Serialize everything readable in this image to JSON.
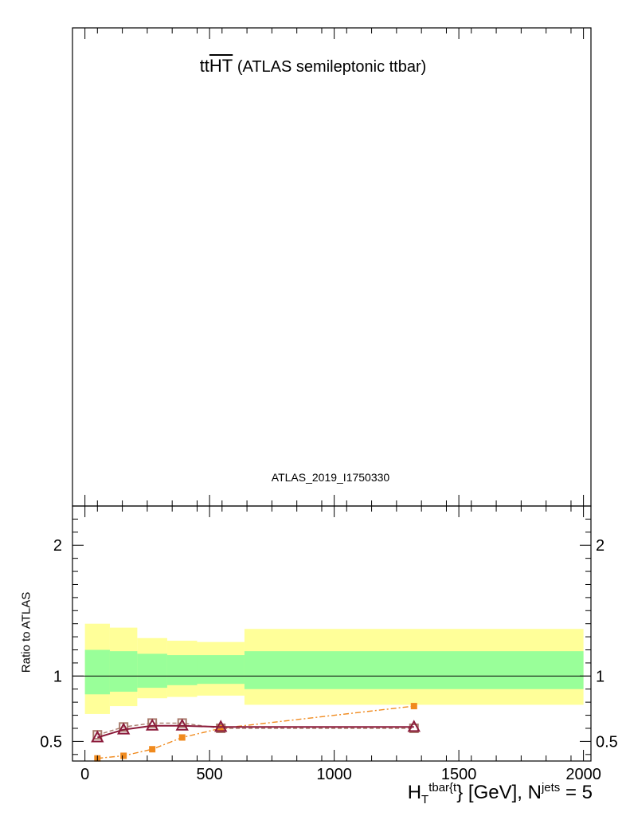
{
  "title": {
    "main": "tt",
    "main_bar": "HT",
    "sub": "(ATLAS semileptonic ttbar)"
  },
  "analysis_label": "ATLAS_2019_I1750330",
  "chart_data": {
    "type": "line",
    "ylabel": "Ratio to ATLAS",
    "xlabel": {
      "base": "H",
      "sub": "T",
      "sup": "tbar{t",
      "rest": "} [GeV], N",
      "jets_sup": "jets",
      "tail": " = 5"
    },
    "xlim": [
      -50,
      2030
    ],
    "ylim": [
      0.35,
      2.3
    ],
    "x_ticks": [
      0,
      500,
      1000,
      1500,
      2000
    ],
    "x_tick_labels": [
      "0",
      "500",
      "1000",
      "1500",
      "2000"
    ],
    "y_ticks": [
      0.5,
      1,
      2
    ],
    "y_tick_labels": [
      "0.5",
      "1",
      "2"
    ],
    "reference_line": 1,
    "bins": [
      [
        0,
        100
      ],
      [
        100,
        210
      ],
      [
        210,
        330
      ],
      [
        330,
        450
      ],
      [
        450,
        640
      ],
      [
        640,
        2000
      ]
    ],
    "uncertainty_bands": {
      "stat_green": [
        [
          0.86,
          1.2
        ],
        [
          0.88,
          1.19
        ],
        [
          0.91,
          1.17
        ],
        [
          0.93,
          1.16
        ],
        [
          0.94,
          1.16
        ],
        [
          0.9,
          1.19
        ]
      ],
      "total_yellow": [
        [
          0.71,
          1.4
        ],
        [
          0.77,
          1.37
        ],
        [
          0.83,
          1.29
        ],
        [
          0.84,
          1.27
        ],
        [
          0.85,
          1.26
        ],
        [
          0.78,
          1.36
        ]
      ]
    },
    "series": [
      {
        "color": "#f08a1e",
        "style": "dashdot",
        "marker": "square",
        "x": [
          50,
          155,
          270,
          390,
          545,
          1320
        ],
        "y": [
          0.37,
          0.39,
          0.44,
          0.53,
          0.6,
          0.77
        ]
      },
      {
        "color": "#a87a6c",
        "style": "dashed",
        "marker": "square-open",
        "x": [
          50,
          155,
          270,
          390,
          545,
          1320
        ],
        "y": [
          0.55,
          0.61,
          0.64,
          0.64,
          0.6,
          0.6
        ]
      },
      {
        "color": "#8b1a3a",
        "style": "solid",
        "marker": "triangle-open",
        "x": [
          50,
          155,
          270,
          390,
          545,
          1320
        ],
        "y": [
          0.53,
          0.59,
          0.62,
          0.62,
          0.61,
          0.61
        ]
      }
    ]
  }
}
